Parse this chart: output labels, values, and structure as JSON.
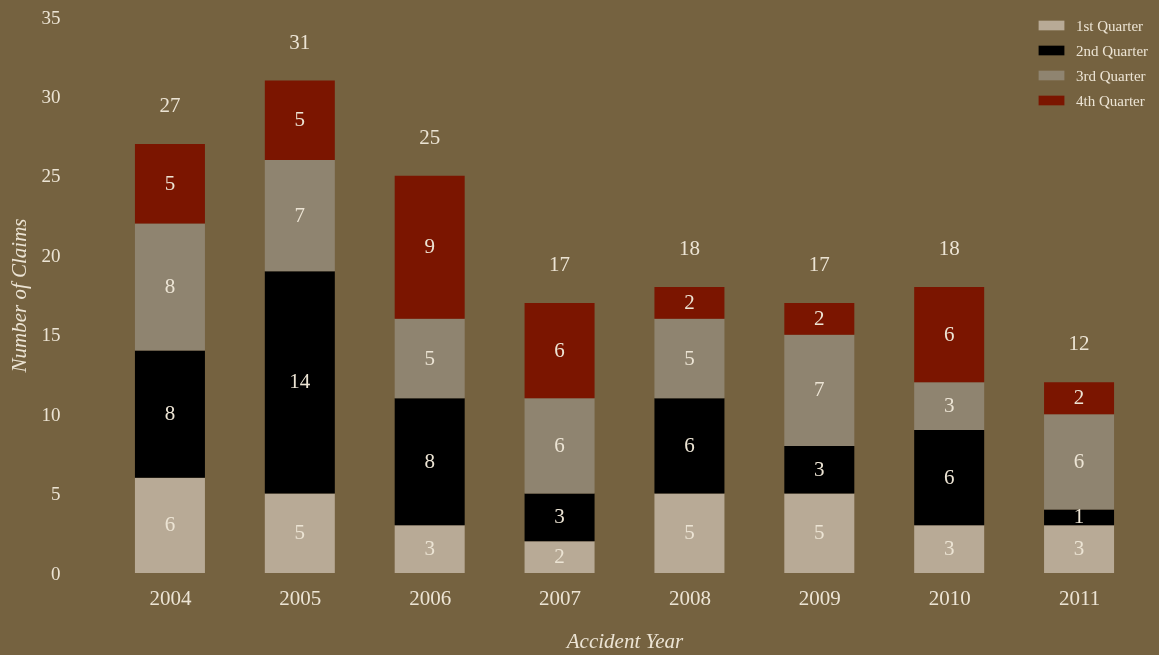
{
  "chart_data": {
    "type": "bar",
    "stacked": true,
    "xlabel": "Accident Year",
    "ylabel": "Number of Claims",
    "categories": [
      "2004",
      "2005",
      "2006",
      "2007",
      "2008",
      "2009",
      "2010",
      "2011"
    ],
    "series": [
      {
        "name": "1st Quarter",
        "color": "#b8aa96",
        "values": [
          6,
          5,
          3,
          2,
          5,
          5,
          3,
          3
        ]
      },
      {
        "name": "2nd Quarter",
        "color": "#000000",
        "values": [
          8,
          14,
          8,
          3,
          6,
          3,
          6,
          1
        ]
      },
      {
        "name": "3rd Quarter",
        "color": "#8f8470",
        "values": [
          8,
          7,
          5,
          6,
          5,
          7,
          3,
          6
        ]
      },
      {
        "name": "4th Quarter",
        "color": "#7b1500",
        "values": [
          5,
          5,
          9,
          6,
          2,
          2,
          6,
          2
        ]
      }
    ],
    "totals": [
      "27",
      "31",
      "25",
      "17",
      "18",
      "17",
      "18",
      "12"
    ],
    "data_labels": true,
    "ylim": [
      0,
      35
    ],
    "yticks": [
      0,
      5,
      10,
      15,
      20,
      25,
      30,
      35
    ],
    "grid": false,
    "legend": "top right"
  }
}
